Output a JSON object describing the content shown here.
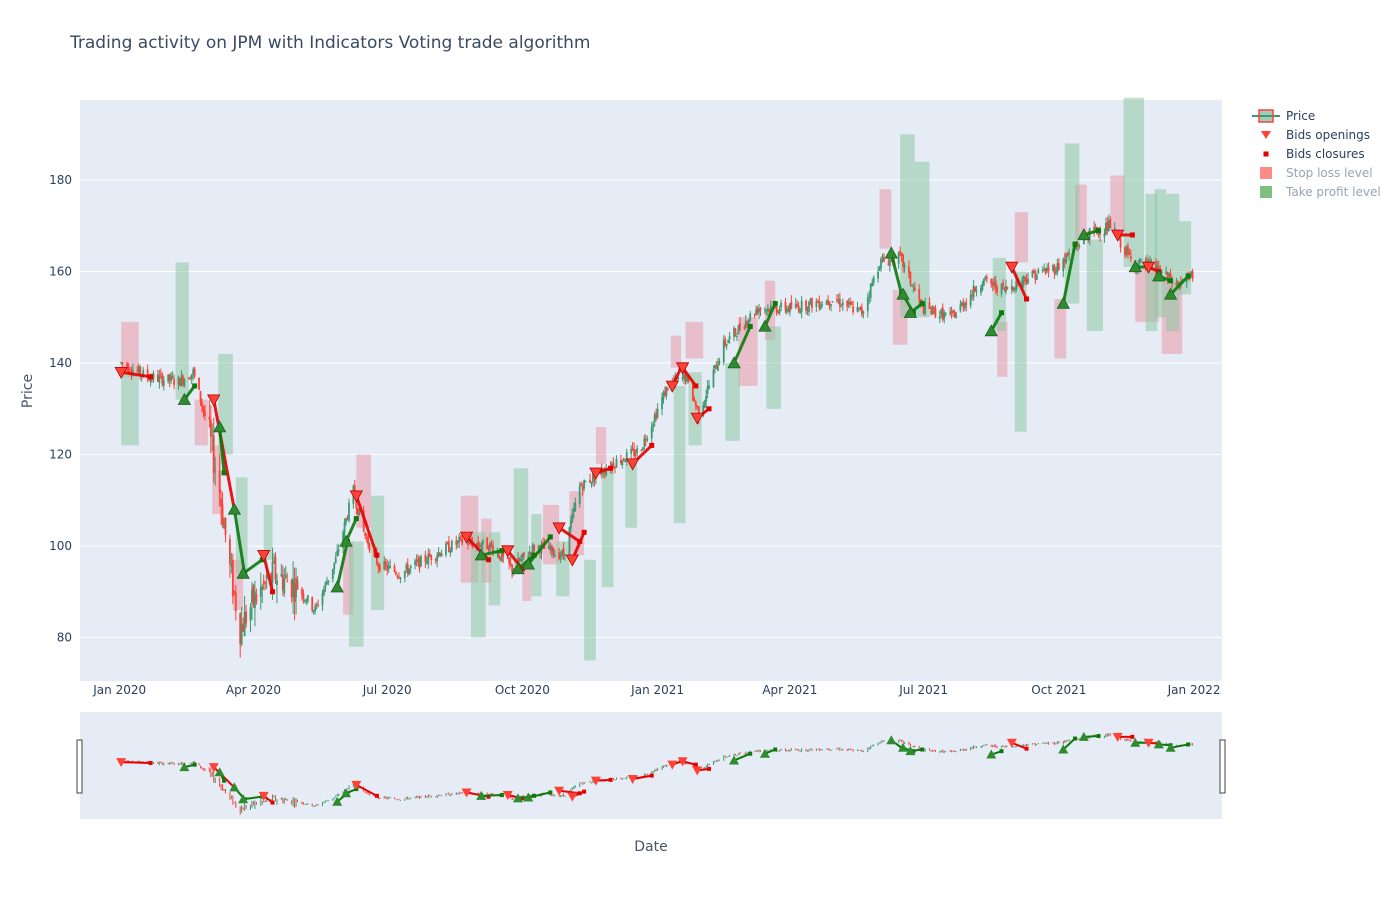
{
  "title": "Trading activity on JPM with Indicators Voting trade algorithm",
  "chart_data": {
    "type": "candlestick",
    "xlabel": "Date",
    "ylabel": "Price",
    "xlim": [
      "2019-12-05",
      "2022-01-20"
    ],
    "ylim": [
      70.5,
      197.5
    ],
    "x_ticks": [
      {
        "date": "2020-01-01",
        "label": "Jan 2020"
      },
      {
        "date": "2020-04-01",
        "label": "Apr 2020"
      },
      {
        "date": "2020-07-01",
        "label": "Jul 2020"
      },
      {
        "date": "2020-10-01",
        "label": "Oct 2020"
      },
      {
        "date": "2021-01-01",
        "label": "Jan 2021"
      },
      {
        "date": "2021-04-01",
        "label": "Apr 2021"
      },
      {
        "date": "2021-07-01",
        "label": "Jul 2021"
      },
      {
        "date": "2021-10-01",
        "label": "Oct 2021"
      },
      {
        "date": "2022-01-01",
        "label": "Jan 2022"
      }
    ],
    "y_ticks": [
      80,
      100,
      120,
      140,
      160,
      180
    ],
    "grid": true,
    "legend_position": "top-right",
    "legend": [
      {
        "name": "Price",
        "kind": "candle",
        "muted": false
      },
      {
        "name": "Bids openings",
        "kind": "triangle",
        "muted": false
      },
      {
        "name": "Bids closures",
        "kind": "square",
        "muted": false
      },
      {
        "name": "Stop loss level",
        "kind": "box-red",
        "muted": true
      },
      {
        "name": "Take profit level",
        "kind": "box-green",
        "muted": true
      }
    ],
    "colors": {
      "increasing": "#3d9970",
      "decreasing": "#ff4136",
      "bid_long": "#0a7a0a",
      "bid_short": "#e60000",
      "stop_loss": "#e8a0ad",
      "take_profit": "#8fc9a4",
      "plot_bg": "#e5ecf6",
      "grid": "#ffffff"
    },
    "price_path": [
      [
        "2020-01-02",
        140
      ],
      [
        "2020-01-20",
        137
      ],
      [
        "2020-02-10",
        136
      ],
      [
        "2020-02-20",
        138
      ],
      [
        "2020-03-01",
        126
      ],
      [
        "2020-03-09",
        112
      ],
      [
        "2020-03-16",
        95
      ],
      [
        "2020-03-23",
        82
      ],
      [
        "2020-04-01",
        88
      ],
      [
        "2020-04-15",
        94
      ],
      [
        "2020-05-01",
        91
      ],
      [
        "2020-05-13",
        86
      ],
      [
        "2020-05-27",
        97
      ],
      [
        "2020-06-08",
        112
      ],
      [
        "2020-06-15",
        103
      ],
      [
        "2020-06-25",
        96
      ],
      [
        "2020-07-10",
        94
      ],
      [
        "2020-08-01",
        98
      ],
      [
        "2020-08-20",
        101
      ],
      [
        "2020-09-10",
        100
      ],
      [
        "2020-09-24",
        95
      ],
      [
        "2020-10-10",
        100
      ],
      [
        "2020-10-29",
        98
      ],
      [
        "2020-11-09",
        113
      ],
      [
        "2020-12-01",
        118
      ],
      [
        "2020-12-20",
        121
      ],
      [
        "2021-01-08",
        135
      ],
      [
        "2021-01-20",
        137
      ],
      [
        "2021-01-29",
        129
      ],
      [
        "2021-02-15",
        144
      ],
      [
        "2021-03-10",
        152
      ],
      [
        "2021-04-01",
        152
      ],
      [
        "2021-05-01",
        154
      ],
      [
        "2021-05-20",
        151
      ],
      [
        "2021-06-01",
        162
      ],
      [
        "2021-06-15",
        163
      ],
      [
        "2021-06-30",
        152
      ],
      [
        "2021-07-20",
        150
      ],
      [
        "2021-08-10",
        158
      ],
      [
        "2021-08-25",
        156
      ],
      [
        "2021-09-10",
        159
      ],
      [
        "2021-09-30",
        161
      ],
      [
        "2021-10-20",
        168
      ],
      [
        "2021-11-05",
        170
      ],
      [
        "2021-11-20",
        162
      ],
      [
        "2021-12-05",
        161
      ],
      [
        "2021-12-20",
        157
      ],
      [
        "2021-12-31",
        159
      ]
    ],
    "stop_loss_levels": [
      {
        "start": "2020-01-02",
        "end": "2020-01-14",
        "low": 137,
        "high": 149
      },
      {
        "start": "2020-02-21",
        "end": "2020-03-01",
        "low": 122,
        "high": 132
      },
      {
        "start": "2020-03-04",
        "end": "2020-03-10",
        "low": 107,
        "high": 122
      },
      {
        "start": "2020-03-18",
        "end": "2020-03-25",
        "low": 86,
        "high": 97
      },
      {
        "start": "2020-06-01",
        "end": "2020-06-08",
        "low": 85,
        "high": 101
      },
      {
        "start": "2020-06-10",
        "end": "2020-06-20",
        "low": 104,
        "high": 120
      },
      {
        "start": "2020-08-20",
        "end": "2020-09-01",
        "low": 92,
        "high": 111
      },
      {
        "start": "2020-09-03",
        "end": "2020-09-10",
        "low": 92,
        "high": 106
      },
      {
        "start": "2020-10-01",
        "end": "2020-10-07",
        "low": 88,
        "high": 95
      },
      {
        "start": "2020-10-15",
        "end": "2020-10-26",
        "low": 96,
        "high": 109
      },
      {
        "start": "2020-11-02",
        "end": "2020-11-12",
        "low": 98,
        "high": 112
      },
      {
        "start": "2020-11-20",
        "end": "2020-11-27",
        "low": 118,
        "high": 126
      },
      {
        "start": "2021-01-10",
        "end": "2021-01-17",
        "low": 139,
        "high": 146
      },
      {
        "start": "2021-01-20",
        "end": "2021-02-01",
        "low": 141,
        "high": 149
      },
      {
        "start": "2021-02-25",
        "end": "2021-03-10",
        "low": 135,
        "high": 150
      },
      {
        "start": "2021-03-15",
        "end": "2021-03-22",
        "low": 145,
        "high": 158
      },
      {
        "start": "2021-06-01",
        "end": "2021-06-09",
        "low": 165,
        "high": 178
      },
      {
        "start": "2021-06-10",
        "end": "2021-06-20",
        "low": 144,
        "high": 156
      },
      {
        "start": "2021-08-20",
        "end": "2021-08-27",
        "low": 137,
        "high": 149
      },
      {
        "start": "2021-09-01",
        "end": "2021-09-10",
        "low": 162,
        "high": 173
      },
      {
        "start": "2021-09-28",
        "end": "2021-10-06",
        "low": 141,
        "high": 154
      },
      {
        "start": "2021-10-12",
        "end": "2021-10-20",
        "low": 167,
        "high": 179
      },
      {
        "start": "2021-11-05",
        "end": "2021-11-15",
        "low": 169,
        "high": 181
      },
      {
        "start": "2021-11-22",
        "end": "2021-12-08",
        "low": 149,
        "high": 161
      },
      {
        "start": "2021-12-10",
        "end": "2021-12-24",
        "low": 142,
        "high": 158
      }
    ],
    "take_profit_levels": [
      {
        "start": "2020-01-02",
        "end": "2020-01-14",
        "low": 122,
        "high": 138
      },
      {
        "start": "2020-02-08",
        "end": "2020-02-17",
        "low": 132,
        "high": 162
      },
      {
        "start": "2020-03-08",
        "end": "2020-03-18",
        "low": 120,
        "high": 142
      },
      {
        "start": "2020-03-20",
        "end": "2020-03-28",
        "low": 94,
        "high": 115
      },
      {
        "start": "2020-04-08",
        "end": "2020-04-14",
        "low": 97,
        "high": 109
      },
      {
        "start": "2020-06-05",
        "end": "2020-06-15",
        "low": 78,
        "high": 101
      },
      {
        "start": "2020-06-20",
        "end": "2020-06-29",
        "low": 86,
        "high": 111
      },
      {
        "start": "2020-08-27",
        "end": "2020-09-06",
        "low": 80,
        "high": 103
      },
      {
        "start": "2020-09-08",
        "end": "2020-09-16",
        "low": 87,
        "high": 103
      },
      {
        "start": "2020-09-25",
        "end": "2020-10-05",
        "low": 95,
        "high": 117
      },
      {
        "start": "2020-10-07",
        "end": "2020-10-14",
        "low": 89,
        "high": 107
      },
      {
        "start": "2020-10-24",
        "end": "2020-11-02",
        "low": 89,
        "high": 101
      },
      {
        "start": "2020-11-12",
        "end": "2020-11-20",
        "low": 75,
        "high": 97
      },
      {
        "start": "2020-11-24",
        "end": "2020-12-02",
        "low": 91,
        "high": 117
      },
      {
        "start": "2020-12-10",
        "end": "2020-12-18",
        "low": 104,
        "high": 118
      },
      {
        "start": "2021-01-12",
        "end": "2021-01-20",
        "low": 105,
        "high": 135
      },
      {
        "start": "2021-01-22",
        "end": "2021-01-31",
        "low": 122,
        "high": 138
      },
      {
        "start": "2021-02-16",
        "end": "2021-02-26",
        "low": 123,
        "high": 140
      },
      {
        "start": "2021-03-16",
        "end": "2021-03-26",
        "low": 130,
        "high": 148
      },
      {
        "start": "2021-06-15",
        "end": "2021-06-25",
        "low": 150,
        "high": 190
      },
      {
        "start": "2021-06-25",
        "end": "2021-07-05",
        "low": 150,
        "high": 184
      },
      {
        "start": "2021-08-17",
        "end": "2021-08-26",
        "low": 147,
        "high": 163
      },
      {
        "start": "2021-09-01",
        "end": "2021-09-09",
        "low": 125,
        "high": 160
      },
      {
        "start": "2021-10-05",
        "end": "2021-10-15",
        "low": 153,
        "high": 188
      },
      {
        "start": "2021-10-20",
        "end": "2021-10-31",
        "low": 147,
        "high": 167
      },
      {
        "start": "2021-11-14",
        "end": "2021-11-28",
        "low": 161,
        "high": 198
      },
      {
        "start": "2021-11-29",
        "end": "2021-12-07",
        "low": 147,
        "high": 177
      },
      {
        "start": "2021-12-05",
        "end": "2021-12-13",
        "low": 150,
        "high": 178
      },
      {
        "start": "2021-12-13",
        "end": "2021-12-22",
        "low": 147,
        "high": 177
      },
      {
        "start": "2021-12-22",
        "end": "2021-12-30",
        "low": 155,
        "high": 171
      }
    ],
    "bids": [
      {
        "open_date": "2020-01-02",
        "open_price": 138,
        "close_date": "2020-01-22",
        "close_price": 137,
        "direction": "short"
      },
      {
        "open_date": "2020-02-14",
        "open_price": 132,
        "close_date": "2020-02-21",
        "close_price": 135,
        "direction": "long"
      },
      {
        "open_date": "2020-03-05",
        "open_price": 132,
        "close_date": "2020-03-19",
        "close_price": 108,
        "direction": "short"
      },
      {
        "open_date": "2020-03-09",
        "open_price": 126,
        "close_date": "2020-03-12",
        "close_price": 116,
        "direction": "long"
      },
      {
        "open_date": "2020-03-19",
        "open_price": 108,
        "close_date": "2020-03-26",
        "close_price": 94,
        "direction": "long"
      },
      {
        "open_date": "2020-03-25",
        "open_price": 94,
        "close_date": "2020-04-07",
        "close_price": 97,
        "direction": "long"
      },
      {
        "open_date": "2020-04-08",
        "open_price": 98,
        "close_date": "2020-04-14",
        "close_price": 90,
        "direction": "short"
      },
      {
        "open_date": "2020-05-28",
        "open_price": 91,
        "close_date": "2020-06-04",
        "close_price": 101,
        "direction": "long"
      },
      {
        "open_date": "2020-06-03",
        "open_price": 101,
        "close_date": "2020-06-10",
        "close_price": 106,
        "direction": "long"
      },
      {
        "open_date": "2020-06-10",
        "open_price": 111,
        "close_date": "2020-06-24",
        "close_price": 98,
        "direction": "short"
      },
      {
        "open_date": "2020-08-24",
        "open_price": 102,
        "close_date": "2020-09-08",
        "close_price": 97,
        "direction": "short"
      },
      {
        "open_date": "2020-09-03",
        "open_price": 98,
        "close_date": "2020-09-17",
        "close_price": 99,
        "direction": "long"
      },
      {
        "open_date": "2020-09-21",
        "open_price": 99,
        "close_date": "2020-10-01",
        "close_price": 95,
        "direction": "short"
      },
      {
        "open_date": "2020-09-28",
        "open_price": 95,
        "close_date": "2020-10-09",
        "close_price": 98,
        "direction": "long"
      },
      {
        "open_date": "2020-10-05",
        "open_price": 96,
        "close_date": "2020-10-20",
        "close_price": 102,
        "direction": "long"
      },
      {
        "open_date": "2020-10-26",
        "open_price": 104,
        "close_date": "2020-11-09",
        "close_price": 101,
        "direction": "short"
      },
      {
        "open_date": "2020-11-04",
        "open_price": 97,
        "close_date": "2020-11-12",
        "close_price": 103,
        "direction": "short"
      },
      {
        "open_date": "2020-11-20",
        "open_price": 116,
        "close_date": "2020-11-30",
        "close_price": 117,
        "direction": "short"
      },
      {
        "open_date": "2020-12-15",
        "open_price": 118,
        "close_date": "2020-12-28",
        "close_price": 122,
        "direction": "short"
      },
      {
        "open_date": "2021-01-11",
        "open_price": 135,
        "close_date": "2021-01-17",
        "close_price": 139,
        "direction": "short"
      },
      {
        "open_date": "2021-01-18",
        "open_price": 139,
        "close_date": "2021-01-27",
        "close_price": 135,
        "direction": "short"
      },
      {
        "open_date": "2021-01-28",
        "open_price": 128,
        "close_date": "2021-02-05",
        "close_price": 130,
        "direction": "short"
      },
      {
        "open_date": "2021-02-22",
        "open_price": 140,
        "close_date": "2021-03-05",
        "close_price": 148,
        "direction": "long"
      },
      {
        "open_date": "2021-03-15",
        "open_price": 148,
        "close_date": "2021-03-22",
        "close_price": 153,
        "direction": "long"
      },
      {
        "open_date": "2021-06-09",
        "open_price": 164,
        "close_date": "2021-06-16",
        "close_price": 155,
        "direction": "long"
      },
      {
        "open_date": "2021-06-17",
        "open_price": 155,
        "close_date": "2021-06-24",
        "close_price": 151,
        "direction": "long"
      },
      {
        "open_date": "2021-06-22",
        "open_price": 151,
        "close_date": "2021-06-30",
        "close_price": 153,
        "direction": "long"
      },
      {
        "open_date": "2021-08-16",
        "open_price": 147,
        "close_date": "2021-08-23",
        "close_price": 151,
        "direction": "long"
      },
      {
        "open_date": "2021-08-30",
        "open_price": 161,
        "close_date": "2021-09-09",
        "close_price": 154,
        "direction": "short"
      },
      {
        "open_date": "2021-10-04",
        "open_price": 153,
        "close_date": "2021-10-12",
        "close_price": 166,
        "direction": "long"
      },
      {
        "open_date": "2021-10-18",
        "open_price": 168,
        "close_date": "2021-10-28",
        "close_price": 169,
        "direction": "long"
      },
      {
        "open_date": "2021-11-10",
        "open_price": 168,
        "close_date": "2021-11-20",
        "close_price": 168,
        "direction": "short"
      },
      {
        "open_date": "2021-11-22",
        "open_price": 161,
        "close_date": "2021-12-01",
        "close_price": 161,
        "direction": "long"
      },
      {
        "open_date": "2021-12-01",
        "open_price": 161,
        "close_date": "2021-12-08",
        "close_price": 160,
        "direction": "short"
      },
      {
        "open_date": "2021-12-08",
        "open_price": 159,
        "close_date": "2021-12-16",
        "close_price": 158,
        "direction": "long"
      },
      {
        "open_date": "2021-12-16",
        "open_price": 155,
        "close_date": "2021-12-28",
        "close_price": 159,
        "direction": "long"
      }
    ]
  }
}
